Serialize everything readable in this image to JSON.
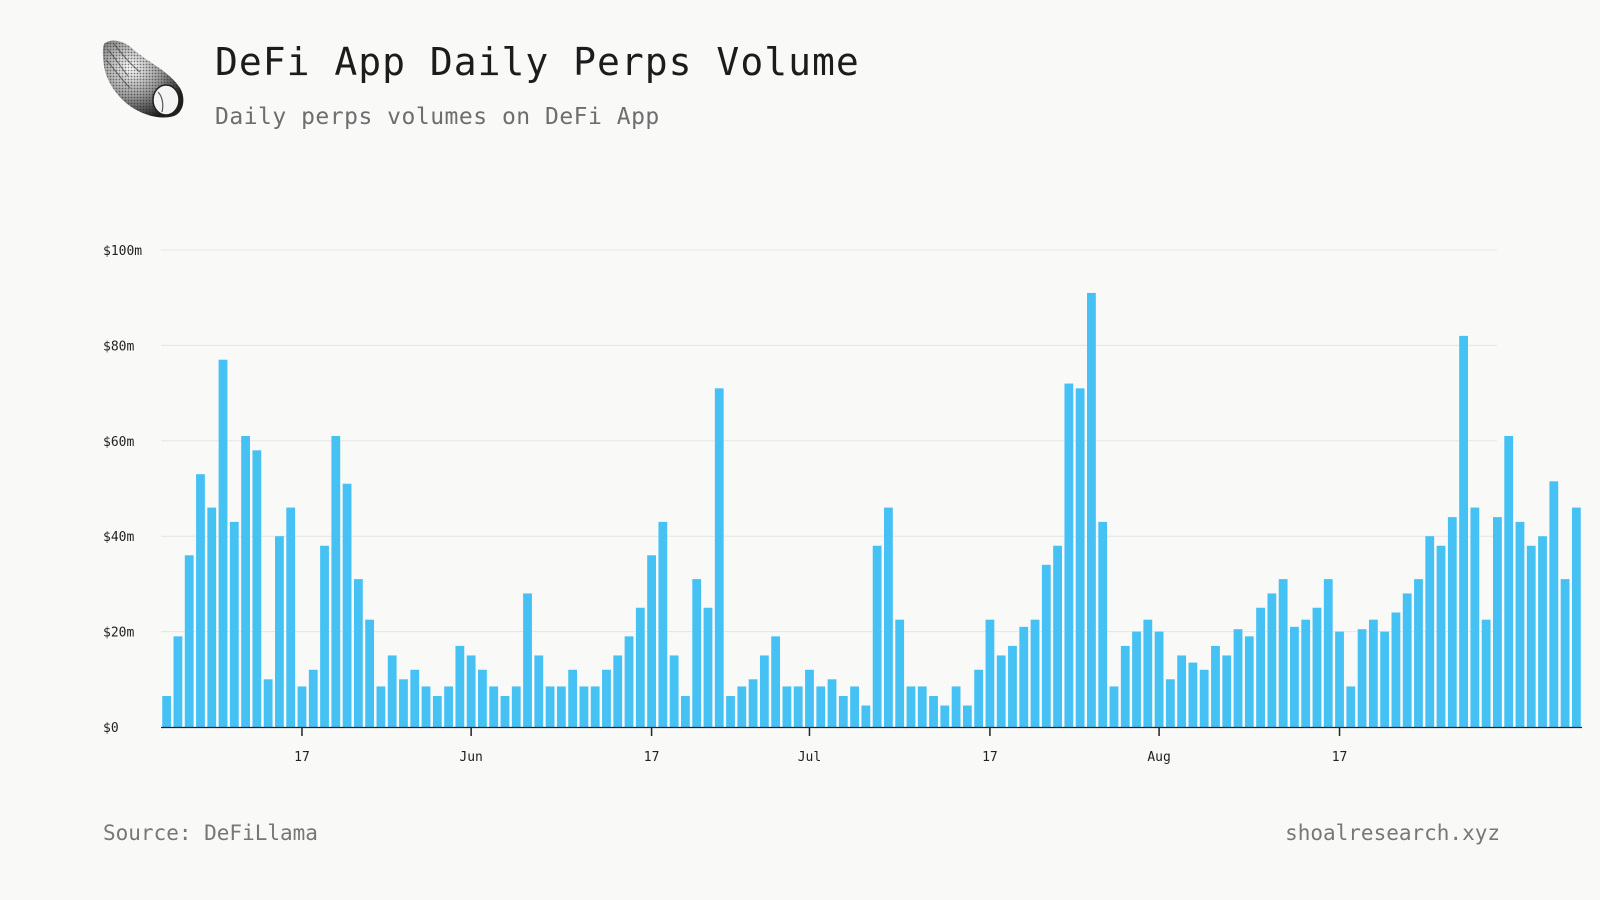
{
  "header": {
    "title": "DeFi App Daily Perps Volume",
    "subtitle": "Daily perps volumes on DeFi App"
  },
  "footer": {
    "source": "Source: DeFiLlama",
    "brand": "shoalresearch.xyz"
  },
  "logo": {
    "icon": "seashell-icon"
  },
  "colors": {
    "bar": "#45c1f4",
    "grid": "#e6e6e6",
    "axis": "#222222",
    "background": "#f9f9f8"
  },
  "chart_data": {
    "type": "bar",
    "title": "DeFi App Daily Perps Volume",
    "xlabel": "",
    "ylabel": "",
    "ylim": [
      0,
      100
    ],
    "unit": "USD millions",
    "grid": true,
    "start_date": "2025-05-05",
    "series": [
      {
        "name": "Daily perps volume",
        "values": [
          6.5,
          19,
          36,
          53,
          46,
          77,
          43,
          61,
          58,
          10,
          40,
          46,
          8.5,
          12,
          38,
          61,
          51,
          31,
          22.5,
          8.5,
          15,
          10,
          12,
          8.5,
          6.5,
          8.5,
          17,
          15,
          12,
          8.5,
          6.5,
          8.5,
          28,
          15,
          8.5,
          8.5,
          12,
          8.5,
          8.5,
          12,
          15,
          19,
          25,
          36,
          43,
          15,
          6.5,
          31,
          25,
          71,
          6.5,
          8.5,
          10,
          15,
          19,
          8.5,
          8.5,
          12,
          8.5,
          10,
          6.5,
          8.5,
          4.5,
          38,
          46,
          22.5,
          8.5,
          8.5,
          6.5,
          4.5,
          8.5,
          4.5,
          12,
          22.5,
          15,
          17,
          21,
          22.5,
          34,
          38,
          72,
          71,
          91,
          43,
          8.5,
          17,
          20,
          22.5,
          20,
          10,
          15,
          13.5,
          12,
          17,
          15,
          20.5,
          19,
          25,
          28,
          31,
          21,
          22.5,
          25,
          31,
          20,
          8.5,
          20.5,
          22.5,
          20,
          24,
          28,
          31,
          40,
          38,
          44,
          82,
          46,
          22.5,
          44,
          61,
          43,
          38,
          40,
          51.5,
          31,
          46
        ]
      }
    ],
    "y_ticks": [
      {
        "value": 0,
        "label": "$0"
      },
      {
        "value": 20,
        "label": "$20m"
      },
      {
        "value": 40,
        "label": "$40m"
      },
      {
        "value": 60,
        "label": "$60m"
      },
      {
        "value": 80,
        "label": "$80m"
      },
      {
        "value": 100,
        "label": "$100m"
      }
    ],
    "x_ticks": [
      {
        "index": 12,
        "label": "17"
      },
      {
        "index": 27,
        "label": "Jun"
      },
      {
        "index": 43,
        "label": "17"
      },
      {
        "index": 57,
        "label": "Jul"
      },
      {
        "index": 73,
        "label": "17"
      },
      {
        "index": 88,
        "label": "Aug"
      },
      {
        "index": 104,
        "label": "17"
      }
    ]
  }
}
